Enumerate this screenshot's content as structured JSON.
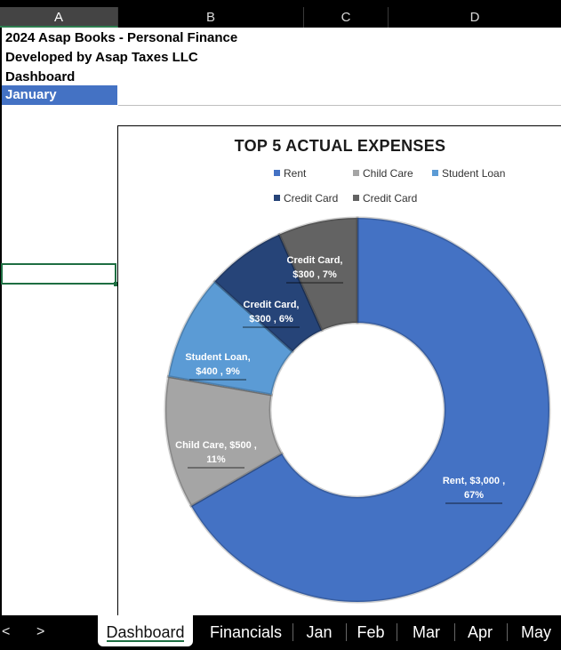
{
  "columns": [
    "A",
    "B",
    "C",
    "D"
  ],
  "cells": {
    "a1": "2024 Asap Books - Personal Finance",
    "a2": "Developed by Asap Taxes LLC",
    "a3": "Dashboard",
    "a4": "January"
  },
  "chart_data": {
    "type": "pie",
    "donut": true,
    "title": "TOP 5 ACTUAL EXPENSES",
    "legend_placement": "top",
    "labels": [
      "Rent",
      "Child Care",
      "Student Loan",
      "Credit Card",
      "Credit Card"
    ],
    "values": [
      3000,
      500,
      400,
      300,
      300
    ],
    "percent_labels": [
      "67%",
      "11%",
      "9%",
      "6%",
      "7%"
    ],
    "value_labels": [
      "$3,000",
      "$500",
      "$400",
      "$300",
      "$300"
    ],
    "colors": [
      "#4472c4",
      "#a5a5a5",
      "#5b9bd5",
      "#264478",
      "#636363"
    ]
  },
  "sheet_tabs": [
    "Dashboard",
    "Financials",
    "Jan",
    "Feb",
    "Mar",
    "Apr",
    "May"
  ],
  "active_tab": "Dashboard",
  "nav": {
    "prev": "<",
    "next": ">"
  }
}
